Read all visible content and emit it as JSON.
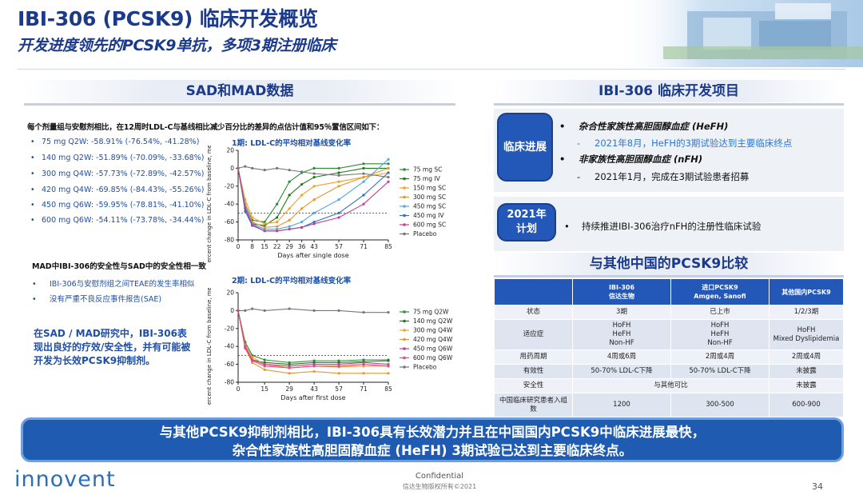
{
  "header": {
    "title": "IBI-306 (PCSK9) 临床开发概览",
    "subtitle": "开发进度领先的PCSK9单抗，多项3期注册临床"
  },
  "left": {
    "section_title": "SAD和MAD数据",
    "intro": "每个剂量组与安慰剂相比，在12周时LDL-C与基线相比减少百分比的差异的点估计值和95％置信区间如下：",
    "dose_results": [
      "75 mg  Q2W: -58.91% (-76.54%, -41.28%)",
      "140 mg Q2W: -51.89% (-70.09%, -33.68%)",
      "300 mg Q4W: -57.73% (-72.89%, -42.57%)",
      "420 mg Q4W: -69.85% (-84.43%, -55.26%)",
      "450 mg Q6W: -59.95% (-78.81%, -41.10%)",
      "600 mg Q6W: -54.11% (-73.78%, -34.44%)"
    ],
    "mad_heading": "MAD中IBI-306的安全性与SAD中的安全性相一致",
    "mad_bullets": [
      "IBI-306与安慰剂组之间TEAE的发生率相似",
      "没有严重不良反应事件报告(SAE)"
    ],
    "summary": "在SAD / MAD研究中，IBI-306表现出良好的疗效/安全性，并有可能被开发为长效PCSK9抑制剂。"
  },
  "chart_data": [
    {
      "type": "line",
      "title": "1期: LDL-C的平均相对基线变化率",
      "xlabel": "Days after single dose",
      "ylabel": "Percent change in LDL-C from baseline, mean (SE)",
      "x": [
        0,
        4,
        8,
        15,
        22,
        29,
        36,
        43,
        57,
        71,
        85
      ],
      "ylim": [
        -80,
        20
      ],
      "xlim": [
        0,
        85
      ],
      "reference_line": -50,
      "legend_position": "right",
      "series": [
        {
          "name": "75 mg SC",
          "color": "#2e8b3a",
          "values": [
            0,
            -40,
            -58,
            -60,
            -40,
            -15,
            -5,
            0,
            0,
            5,
            5
          ]
        },
        {
          "name": "75 mg IV",
          "color": "#1f7a1f",
          "values": [
            0,
            -45,
            -62,
            -64,
            -55,
            -30,
            -18,
            -10,
            -5,
            0,
            0
          ]
        },
        {
          "name": "150 mg SC",
          "color": "#f2a12a",
          "values": [
            0,
            -35,
            -55,
            -62,
            -60,
            -45,
            -30,
            -20,
            -15,
            -10,
            -5
          ]
        },
        {
          "name": "300 mg SC",
          "color": "#e8962e",
          "values": [
            0,
            -40,
            -60,
            -66,
            -65,
            -58,
            -45,
            -35,
            -20,
            -10,
            0
          ]
        },
        {
          "name": "450 mg SC",
          "color": "#5aa6e0",
          "values": [
            0,
            -42,
            -62,
            -68,
            -68,
            -65,
            -60,
            -50,
            -35,
            -15,
            10
          ]
        },
        {
          "name": "450 mg IV",
          "color": "#2a6fc9",
          "values": [
            0,
            -48,
            -64,
            -70,
            -70,
            -68,
            -66,
            -60,
            -50,
            -30,
            -5
          ]
        },
        {
          "name": "600 mg SC",
          "color": "#c2418f",
          "values": [
            0,
            -44,
            -63,
            -70,
            -70,
            -68,
            -66,
            -62,
            -55,
            -40,
            -15
          ]
        },
        {
          "name": "Placebo",
          "color": "#777777",
          "values": [
            0,
            2,
            0,
            -2,
            0,
            -2,
            -4,
            -6,
            -8,
            -6,
            -10
          ]
        }
      ]
    },
    {
      "type": "line",
      "title": "2期: LDL-C的平均相对基线变化率",
      "xlabel": "Days after first dose",
      "ylabel": "Percent change in LDL-C from baseline, mean (SE)",
      "x": [
        0,
        4,
        8,
        15,
        29,
        43,
        57,
        71,
        85
      ],
      "ylim": [
        -80,
        20
      ],
      "xlim": [
        0,
        85
      ],
      "reference_line": -50,
      "legend_position": "right",
      "series": [
        {
          "name": "75 mg Q2W",
          "color": "#2e8b3a",
          "values": [
            0,
            -35,
            -50,
            -55,
            -58,
            -56,
            -56,
            -55,
            -55
          ]
        },
        {
          "name": "140 mg Q2W",
          "color": "#1f7a1f",
          "values": [
            0,
            -40,
            -55,
            -58,
            -60,
            -58,
            -58,
            -57,
            -56
          ]
        },
        {
          "name": "300 mg Q4W",
          "color": "#f2a12a",
          "values": [
            0,
            -38,
            -52,
            -60,
            -64,
            -62,
            -63,
            -62,
            -62
          ]
        },
        {
          "name": "420 mg Q4W",
          "color": "#e8962e",
          "values": [
            0,
            -42,
            -58,
            -66,
            -70,
            -68,
            -70,
            -70,
            -70
          ]
        },
        {
          "name": "450 mg Q6W",
          "color": "#c2418f",
          "values": [
            0,
            -40,
            -55,
            -60,
            -62,
            -60,
            -60,
            -58,
            -60
          ]
        },
        {
          "name": "600 mg Q6W",
          "color": "#e04a8a",
          "values": [
            0,
            -42,
            -56,
            -62,
            -64,
            -62,
            -62,
            -60,
            -62
          ]
        },
        {
          "name": "Placebo",
          "color": "#777777",
          "values": [
            0,
            0,
            2,
            0,
            2,
            0,
            0,
            -2,
            -2
          ]
        }
      ]
    }
  ],
  "right": {
    "section_title": "IBI-306 临床开发项目",
    "progress_label": "临床进展",
    "progress_items": [
      {
        "bullet": "•",
        "text": "杂合性家族性高胆固醇血症 (HeFH)"
      },
      {
        "bullet": "-",
        "text": "2021年8月，HeFH的3期试验达到主要临床终点"
      },
      {
        "bullet": "•",
        "text": "非家族性高胆固醇血症 (nFH)"
      },
      {
        "bullet": "-",
        "text": "2021年1月，完成在3期试验患者招募"
      }
    ],
    "plan_label": "2021年\n计划",
    "plan_bullet": "•",
    "plan_text": "持续推进IBI-306治疗nFH的注册性临床试验",
    "comparison_title": "与其他中国的PCSK9比较",
    "table": {
      "headers": [
        "",
        "IBI-306\n信达生物",
        "进口PCSK9\nAmgen, Sanofi",
        "其他国内PCSK9"
      ],
      "rows": [
        [
          "状态",
          "3期",
          "已上市",
          "1/2/3期"
        ],
        [
          "适应症",
          "HoFH\nHeFH\nNon-HF",
          "HoFH\nHeFH\nNon-HF",
          "HoFH\nMixed Dyslipidemia"
        ],
        [
          "用药周期",
          "4周或6周",
          "2周或4周",
          "2周或4周"
        ],
        [
          "有效性",
          "50-70% LDL-C下降",
          "50-70%  LDL-C下降",
          "未披露"
        ],
        [
          "安全性",
          "与其他可比",
          "",
          "未披露"
        ],
        [
          "中国临床研究患者入组数",
          "1200",
          "300-500",
          "600-900"
        ]
      ]
    }
  },
  "banner": {
    "line1": "与其他PCSK9抑制剂相比，IBI-306具有长效潜力并且在中国国内PCSK9中临床进展最快，",
    "line2": "杂合性家族性高胆固醇血症 (HeFH) 3期试验已达到主要临床终点。"
  },
  "footer": {
    "logo": "innovent",
    "confidential": "Confidential",
    "copyright": "信达生物版权所有©2021",
    "page": "34"
  }
}
